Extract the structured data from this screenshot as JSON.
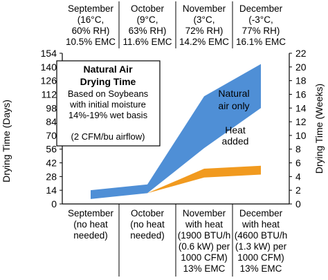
{
  "chart_data": {
    "type": "area",
    "categories": [
      "September",
      "October",
      "November",
      "December"
    ],
    "top_labels": [
      [
        "September",
        "(16°C,",
        "60% RH)",
        "10.5% EMC"
      ],
      [
        "October",
        "(9°C,",
        "63% RH)",
        "11.6% EMC"
      ],
      [
        "November",
        "(3°C,",
        "72% RH)",
        "14.2% EMC"
      ],
      [
        "December",
        "(-3°C,",
        "77% RH)",
        "16.1% EMC"
      ]
    ],
    "bottom_labels": [
      [
        "September",
        "(no heat",
        "needed)"
      ],
      [
        "October",
        "(no heat",
        "needed)"
      ],
      [
        "November",
        "with heat",
        "(1900 BTU/h",
        "(0.6 kW) per",
        "1000 CFM)",
        "13% EMC"
      ],
      [
        "December",
        "with heat",
        "(4600 BTU/h",
        "(1.3 kW) per",
        "1000 CFM)",
        "13% EMC"
      ]
    ],
    "ylabel": "Drying Time (Days)",
    "y2label": "Drying Time (Weeks)",
    "ylim": [
      0,
      154
    ],
    "yticks": [
      0,
      14,
      28,
      42,
      56,
      70,
      84,
      98,
      112,
      126,
      140,
      154
    ],
    "y2lim": [
      0,
      22
    ],
    "y2ticks": [
      0,
      2,
      4,
      6,
      8,
      10,
      12,
      14,
      16,
      18,
      20,
      22
    ],
    "series": [
      {
        "name": "Natural air only",
        "label_lines": [
          "Natural",
          "air only"
        ],
        "color": "#4f8fd6",
        "low": [
          5,
          11,
          57,
          98
        ],
        "high": [
          14,
          20,
          110,
          143
        ]
      },
      {
        "name": "Heat added",
        "label_lines": [
          "Heat",
          "added"
        ],
        "color": "#f19a1f",
        "low": null,
        "high": null,
        "points": [
          [
            1,
            11,
            11
          ],
          [
            2,
            27,
            36
          ],
          [
            3,
            30,
            39
          ]
        ]
      }
    ],
    "annotation": {
      "title_lines": [
        "Natural Air",
        "Drying Time"
      ],
      "body_lines": [
        "Based on Soybeans",
        "with initial moisture",
        "14%-19% wet basis",
        "",
        "(2 CFM/bu airflow)"
      ]
    },
    "grid": false
  }
}
